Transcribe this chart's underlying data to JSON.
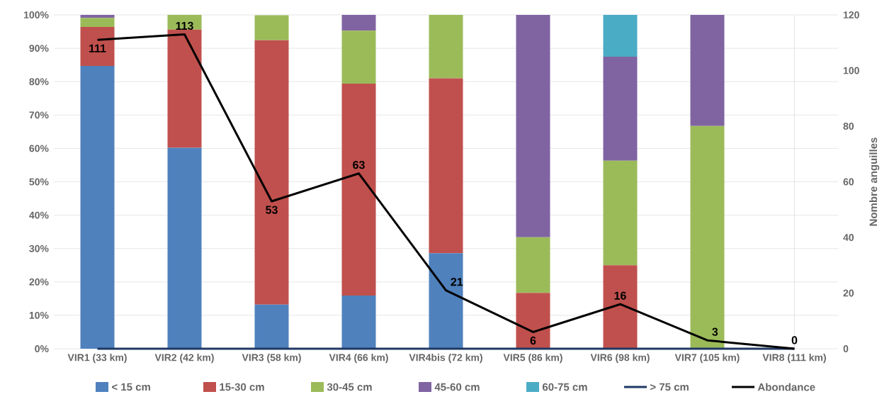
{
  "chart_data": {
    "type": "bar",
    "stacked": true,
    "categories": [
      "VIR1 (33 km)",
      "VIR2 (42 km)",
      "VIR3 (58 km)",
      "VIR4 (66 km)",
      "VIR4bis (72 km)",
      "VIR5 (86 km)",
      "VIR6 (98 km)",
      "VIR7 (105 km)",
      "VIR8 (111 km)"
    ],
    "series": [
      {
        "name": "< 15 cm",
        "color": "#4f81bd",
        "values": [
          84.7,
          60.2,
          13.2,
          15.9,
          28.6,
          0,
          0,
          0,
          0
        ]
      },
      {
        "name": "15-30 cm",
        "color": "#c0504d",
        "values": [
          11.7,
          35.4,
          79.2,
          63.5,
          52.4,
          16.7,
          25,
          0,
          0
        ]
      },
      {
        "name": "30-45 cm",
        "color": "#9bbb59",
        "values": [
          2.7,
          4.4,
          7.5,
          15.9,
          19.0,
          16.7,
          31.3,
          66.7,
          0
        ]
      },
      {
        "name": "45-60 cm",
        "color": "#8064a2",
        "values": [
          0.9,
          0,
          0,
          4.7,
          0,
          66.6,
          31.2,
          33.3,
          0
        ]
      },
      {
        "name": "60-75 cm",
        "color": "#4bacc6",
        "values": [
          0,
          0,
          0,
          0,
          0,
          0,
          12.5,
          0,
          0
        ]
      },
      {
        "name": "> 75 cm",
        "type": "line",
        "color": "#1f3864",
        "values": [
          0,
          0,
          0,
          0,
          0,
          0,
          0,
          0,
          0
        ]
      },
      {
        "name": "Abondance",
        "type": "line",
        "axis": "y2",
        "color": "#000000",
        "values": [
          111,
          113,
          53,
          63,
          21,
          6,
          16,
          3,
          0
        ],
        "value_labels": [
          "111",
          "113",
          "53",
          "63",
          "21",
          "6",
          "16",
          "3",
          "0"
        ]
      }
    ],
    "ylim": [
      0,
      100
    ],
    "yticks": [
      {
        "value": 0,
        "label": "0%"
      },
      {
        "value": 10,
        "label": "10%"
      },
      {
        "value": 20,
        "label": "20%"
      },
      {
        "value": 30,
        "label": "30%"
      },
      {
        "value": 40,
        "label": "40%"
      },
      {
        "value": 50,
        "label": "50%"
      },
      {
        "value": 60,
        "label": "60%"
      },
      {
        "value": 70,
        "label": "70%"
      },
      {
        "value": 80,
        "label": "80%"
      },
      {
        "value": 90,
        "label": "90%"
      },
      {
        "value": 100,
        "label": "100%"
      }
    ],
    "y2label": "Nombre anguilles",
    "y2lim": [
      0,
      120
    ],
    "y2ticks": [
      0,
      20,
      40,
      60,
      80,
      100,
      120
    ],
    "grid": true,
    "legend": "bottom"
  }
}
